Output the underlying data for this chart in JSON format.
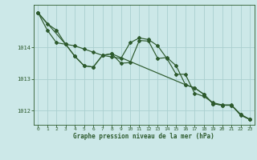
{
  "title": "Graphe pression niveau de la mer (hPa)",
  "background_color": "#cce8e8",
  "grid_color": "#aacfcf",
  "line_color": "#2d5a2d",
  "xlim": [
    -0.5,
    23.5
  ],
  "ylim": [
    1011.55,
    1015.35
  ],
  "yticks": [
    1012,
    1013,
    1014
  ],
  "xticks": [
    0,
    1,
    2,
    3,
    4,
    5,
    6,
    7,
    8,
    9,
    10,
    11,
    12,
    13,
    14,
    15,
    16,
    17,
    18,
    19,
    20,
    21,
    22,
    23
  ],
  "line1_x": [
    0,
    1,
    2,
    3,
    4,
    5,
    6,
    7,
    8,
    9,
    10,
    11,
    12,
    13,
    14,
    15,
    16,
    17,
    18,
    19,
    20,
    21,
    22,
    23
  ],
  "line1_y": [
    1015.1,
    1014.75,
    1014.55,
    1014.1,
    1014.05,
    1013.95,
    1013.85,
    1013.75,
    1013.7,
    1013.65,
    1014.15,
    1014.3,
    1014.25,
    1014.05,
    1013.65,
    1013.15,
    1013.15,
    1012.55,
    1012.45,
    1012.25,
    1012.18,
    1012.18,
    1011.85,
    1011.72
  ],
  "line2_x": [
    0,
    1,
    2,
    3,
    4,
    5,
    6,
    7,
    8,
    9,
    10,
    11,
    12,
    13,
    14,
    15,
    16,
    17,
    18,
    19,
    20,
    21,
    22,
    23
  ],
  "line2_y": [
    1015.1,
    1014.55,
    1014.15,
    1014.1,
    1013.72,
    1013.42,
    1013.38,
    1013.75,
    1013.8,
    1013.5,
    1013.52,
    1014.22,
    1014.2,
    1013.65,
    1013.68,
    1013.42,
    1012.82,
    1012.72,
    1012.52,
    1012.22,
    1012.17,
    1012.17,
    1011.88,
    1011.72
  ],
  "line3_x": [
    0,
    3,
    4,
    5,
    6,
    7,
    8,
    16,
    17,
    18,
    19,
    20,
    21,
    22,
    23
  ],
  "line3_y": [
    1015.1,
    1014.1,
    1013.72,
    1013.42,
    1013.38,
    1013.75,
    1013.8,
    1012.82,
    1012.72,
    1012.52,
    1012.22,
    1012.17,
    1012.17,
    1011.88,
    1011.72
  ]
}
